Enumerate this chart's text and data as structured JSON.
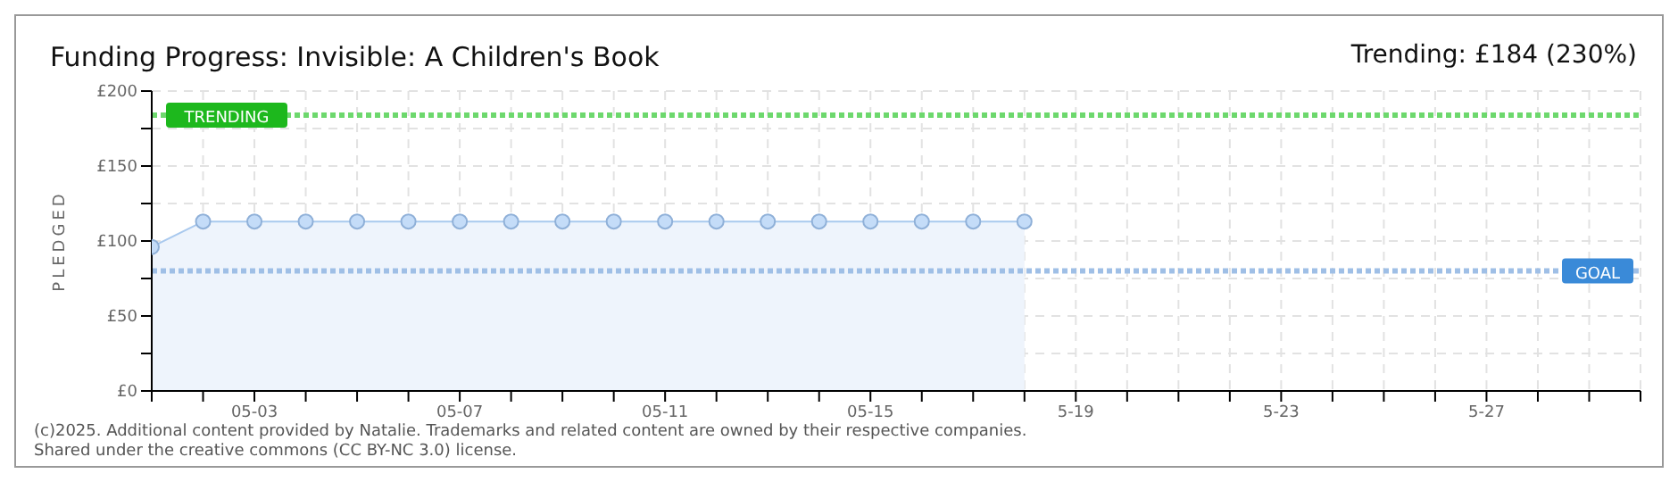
{
  "chart_data": {
    "type": "area",
    "title": "Funding Progress: Invisible: A Children's Book",
    "ylabel": "PLEDGED",
    "x": [
      "--05-01",
      "--05-02",
      "--05-03",
      "--05-04",
      "--05-05",
      "--05-06",
      "--05-07",
      "--05-08",
      "--05-09",
      "--05-10",
      "--05-11",
      "--05-12",
      "--05-13",
      "--05-14",
      "--05-15",
      "--05-16",
      "--05-17",
      "--05-18"
    ],
    "series": [
      {
        "color": "#a9c9ee",
        "values": [
          96,
          113,
          113,
          113,
          113,
          113,
          113,
          113,
          113,
          113,
          113,
          113,
          113,
          113,
          113,
          113,
          113,
          113
        ]
      }
    ],
    "xlim": [
      "--05-01",
      "--05-30"
    ],
    "xticks": [
      {
        "value": "--05-01",
        "label": null
      },
      {
        "value": "--05-02",
        "label": null
      },
      {
        "value": "--05-03",
        "label": "05-03"
      },
      {
        "value": "--05-04",
        "label": null
      },
      {
        "value": "--05-05",
        "label": null
      },
      {
        "value": "--05-06",
        "label": null
      },
      {
        "value": "--05-07",
        "label": "05-07"
      },
      {
        "value": "--05-08",
        "label": null
      },
      {
        "value": "--05-09",
        "label": null
      },
      {
        "value": "--05-10",
        "label": null
      },
      {
        "value": "--05-11",
        "label": "05-11"
      },
      {
        "value": "--05-12",
        "label": null
      },
      {
        "value": "--05-13",
        "label": null
      },
      {
        "value": "--05-14",
        "label": null
      },
      {
        "value": "--05-15",
        "label": "05-15"
      },
      {
        "value": "--05-16",
        "label": null
      },
      {
        "value": "--05-17",
        "label": null
      },
      {
        "value": "--05-18",
        "label": null
      },
      {
        "value": "--05-19",
        "label": "5-19"
      },
      {
        "value": "--05-20",
        "label": null
      },
      {
        "value": "--05-21",
        "label": null
      },
      {
        "value": "--05-22",
        "label": null
      },
      {
        "value": "--05-23",
        "label": "5-23"
      },
      {
        "value": "--05-24",
        "label": null
      },
      {
        "value": "--05-25",
        "label": null
      },
      {
        "value": "--05-26",
        "label": null
      },
      {
        "value": "--05-27",
        "label": "5-27"
      },
      {
        "value": "--05-28",
        "label": null
      },
      {
        "value": "--05-29",
        "label": null
      },
      {
        "value": "--05-30",
        "label": null
      }
    ],
    "ylim": [
      0,
      200
    ],
    "yticks": [
      {
        "value": 0,
        "label": "£0"
      },
      {
        "value": 25,
        "label": null
      },
      {
        "value": 50,
        "label": "£50"
      },
      {
        "value": 75,
        "label": null
      },
      {
        "value": 100,
        "label": "£100"
      },
      {
        "value": 125,
        "label": null
      },
      {
        "value": 150,
        "label": "£150"
      },
      {
        "value": 175,
        "label": null
      },
      {
        "value": 200,
        "label": "£200"
      }
    ],
    "ref_lines": [
      {
        "axis": "y",
        "value": 184,
        "label": "TRENDING",
        "color": "#6dd86d",
        "line_style": "dotted"
      },
      {
        "axis": "y",
        "value": 80,
        "label": "GOAL",
        "color": "#9fbfe6",
        "line_style": "dotted"
      }
    ],
    "annotations": [
      "Trending: £184 (230%)",
      "(c)2025. Additional content provided by Natalie. Trademarks and related content are owned by their respective companies.",
      "Shared under the creative commons (CC BY-NC 3.0) license."
    ],
    "grid": true,
    "marker": "circle"
  }
}
